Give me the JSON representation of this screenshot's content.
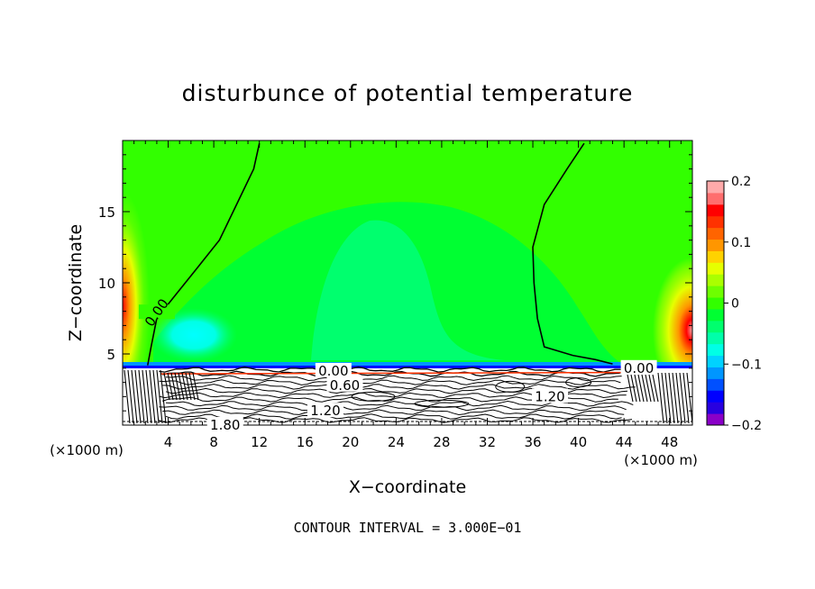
{
  "chart_data": {
    "type": "heatmap",
    "title": "disturbunce of potential temperature",
    "xlabel": "X−coordinate",
    "ylabel": "Z−coordinate",
    "x_unit": "(×1000 m)",
    "y_unit": "(×1000 m)",
    "footer": "CONTOUR INTERVAL = 3.000E−01",
    "xlim": [
      0,
      50
    ],
    "ylim": [
      0,
      20
    ],
    "x_ticks": [
      4,
      8,
      12,
      16,
      20,
      24,
      28,
      32,
      36,
      40,
      44,
      48
    ],
    "y_ticks": [
      5,
      10,
      15
    ],
    "colorbar": {
      "range": [
        -0.2,
        0.2
      ],
      "tick_values": [
        -0.2,
        -0.1,
        0,
        0.1,
        0.2
      ],
      "tick_labels": [
        "−0.2",
        "−0.1",
        "0",
        "0.1",
        "0.2"
      ],
      "colors": [
        "#8a00c8",
        "#2800e0",
        "#0000ff",
        "#0050ff",
        "#0096ff",
        "#00d2ff",
        "#00ffe6",
        "#00ffaa",
        "#00ff6e",
        "#00ff32",
        "#32ff00",
        "#6eff00",
        "#aaff00",
        "#e6ff00",
        "#ffd200",
        "#ff9600",
        "#ff6400",
        "#ff3200",
        "#ff0000",
        "#ff6e6e",
        "#ffaaaa"
      ]
    },
    "contour_labels": [
      {
        "text": "0.00",
        "x": 3.0,
        "z": 7.9
      },
      {
        "text": "0.00",
        "x": 18.5,
        "z": 3.8
      },
      {
        "text": "0.60",
        "x": 19.5,
        "z": 2.8
      },
      {
        "text": "1.20",
        "x": 37.5,
        "z": 2.0
      },
      {
        "text": "1.20",
        "x": 17.8,
        "z": 1.0
      },
      {
        "text": "1.80",
        "x": 9.0,
        "z": 0.0
      },
      {
        "text": "0.00",
        "x": 45.3,
        "z": 4.0
      }
    ],
    "contour_zero_left": [
      [
        2.2,
        4.2
      ],
      [
        2.5,
        5.5
      ],
      [
        3.0,
        7.5
      ],
      [
        4.5,
        9.0
      ],
      [
        6.5,
        11.0
      ],
      [
        8.5,
        13.0
      ],
      [
        10.0,
        15.5
      ],
      [
        11.5,
        18.0
      ],
      [
        12.0,
        19.8
      ]
    ],
    "contour_zero_right": [
      [
        40.5,
        19.8
      ],
      [
        39.0,
        18.0
      ],
      [
        37.0,
        15.5
      ],
      [
        36.0,
        12.5
      ],
      [
        36.1,
        10.0
      ],
      [
        36.4,
        7.5
      ],
      [
        37.0,
        5.5
      ],
      [
        39.5,
        4.9
      ],
      [
        41.5,
        4.6
      ],
      [
        43.0,
        4.3
      ]
    ]
  }
}
